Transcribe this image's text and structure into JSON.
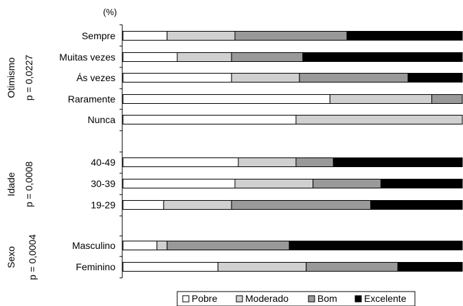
{
  "chart_data": {
    "type": "bar",
    "orientation": "horizontal",
    "stacked": true,
    "unit_label": "(%)",
    "xlim": [
      0,
      100
    ],
    "legend_position": "bottom",
    "grid": false,
    "series": [
      {
        "name": "Pobre",
        "color": "#ffffff"
      },
      {
        "name": "Moderado",
        "color": "#d0d0d0"
      },
      {
        "name": "Bom",
        "color": "#999999"
      },
      {
        "name": "Excelente",
        "color": "#000000"
      }
    ],
    "groups": [
      {
        "title": "Otimismo",
        "subtitle": "p = 0,0227",
        "rows": [
          {
            "label": "Sempre",
            "values": [
              13,
              20,
              33,
              34
            ]
          },
          {
            "label": "Muitas vezes",
            "values": [
              16,
              16,
              21,
              47
            ]
          },
          {
            "label": "Ás vezes",
            "values": [
              32,
              20,
              32,
              16
            ]
          },
          {
            "label": "Raramente",
            "values": [
              61,
              30,
              9,
              0
            ]
          },
          {
            "label": "Nunca",
            "values": [
              51,
              49,
              0,
              0
            ]
          }
        ]
      },
      {
        "title": "Idade",
        "subtitle": "p = 0,0008",
        "rows": [
          {
            "label": "40-49",
            "values": [
              34,
              17,
              11,
              38
            ]
          },
          {
            "label": "30-39",
            "values": [
              33,
              23,
              20,
              24
            ]
          },
          {
            "label": "19-29",
            "values": [
              12,
              20,
              41,
              27
            ]
          }
        ]
      },
      {
        "title": "Sexo",
        "subtitle": "p = 0,0004",
        "rows": [
          {
            "label": "Masculino",
            "values": [
              10,
              3,
              36,
              51
            ]
          },
          {
            "label": "Feminino",
            "values": [
              28,
              26,
              27,
              19
            ]
          }
        ]
      }
    ]
  }
}
